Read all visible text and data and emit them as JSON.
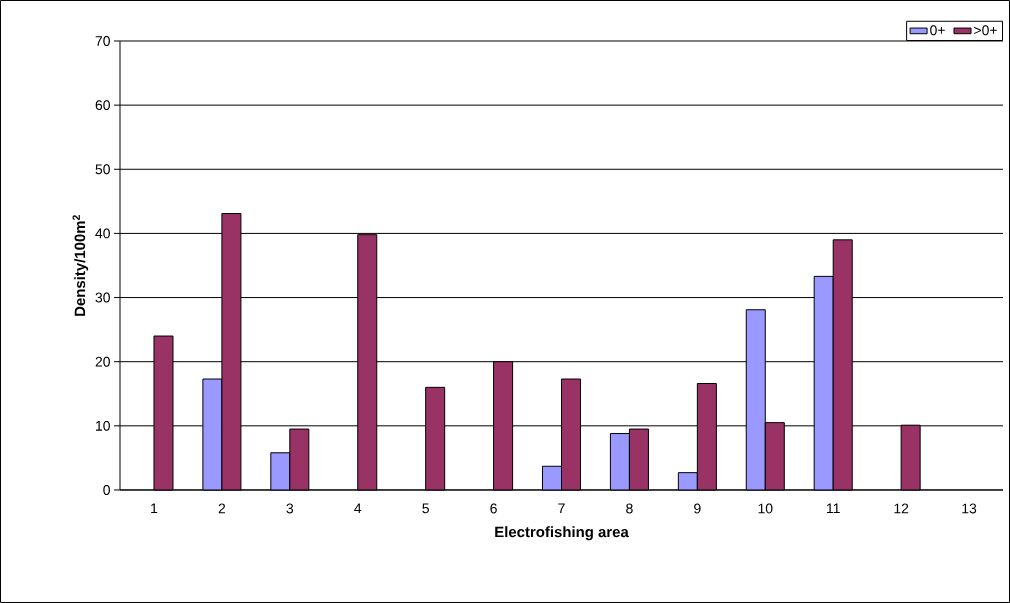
{
  "chart_data": {
    "type": "bar",
    "xlabel": "Electrofishing area",
    "ylabel": "Density/100m$^{2}$",
    "categories": [
      "1",
      "2",
      "3",
      "4",
      "5",
      "6",
      "7",
      "8",
      "9",
      "10",
      "11",
      "12",
      "13"
    ],
    "series": [
      {
        "name": "0+",
        "color": "#9999ff",
        "values": [
          null,
          17.3,
          5.8,
          null,
          null,
          null,
          3.7,
          8.8,
          2.7,
          28.1,
          33.3,
          null,
          null
        ]
      },
      {
        "name": ">0+",
        "color": "#993366",
        "values": [
          24.0,
          43.1,
          9.5,
          39.8,
          16.0,
          20.0,
          17.3,
          9.5,
          16.6,
          10.5,
          39.0,
          10.1,
          null
        ]
      }
    ],
    "ylim": [
      0,
      70
    ],
    "yticks": [
      0,
      10,
      20,
      30,
      40,
      50,
      60,
      70
    ],
    "grid": "y",
    "legend": "top right"
  }
}
